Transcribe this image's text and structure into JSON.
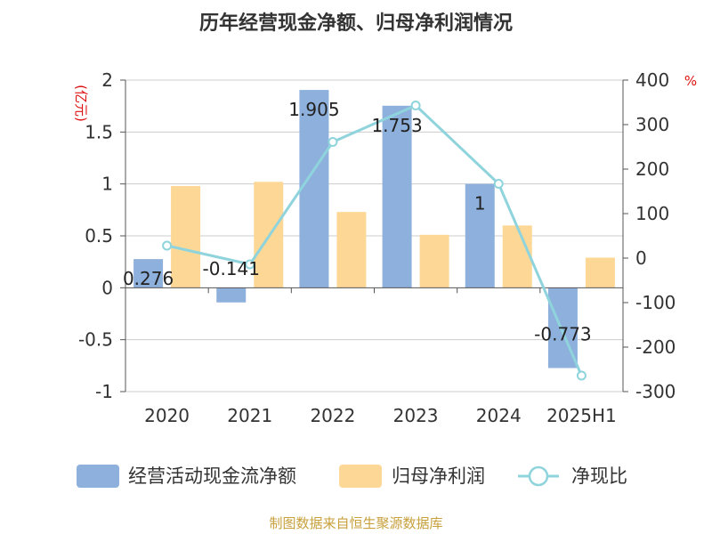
{
  "title": "历年经营现金净额、归母净利润情况",
  "source": "制图数据来自恒生聚源数据库",
  "chart_data": {
    "type": "bar",
    "categories": [
      "2020",
      "2021",
      "2022",
      "2023",
      "2024",
      "2025H1"
    ],
    "series": [
      {
        "name": "经营活动现金流净额",
        "type": "bar",
        "axis": "left",
        "color": "#8eb0dc",
        "values": [
          0.276,
          -0.141,
          1.905,
          1.753,
          1,
          -0.773
        ],
        "data_labels": [
          "0.276",
          "-0.141",
          "1.905",
          "1.753",
          "1",
          "-0.773"
        ]
      },
      {
        "name": "归母净利润",
        "type": "bar",
        "axis": "left",
        "color": "#fdd796",
        "values": [
          0.98,
          1.02,
          0.73,
          0.51,
          0.6,
          0.29
        ]
      },
      {
        "name": "净现比",
        "type": "line",
        "axis": "right",
        "color": "#8fd4dc",
        "values": [
          28,
          -14,
          261,
          343,
          167,
          -264
        ]
      }
    ],
    "y_left": {
      "unit": "(亿元)",
      "ylim": [
        -1,
        2
      ],
      "ticks": [
        2,
        1.5,
        1,
        0.5,
        0,
        -0.5,
        -1
      ],
      "tick_labels": [
        "2",
        "1.5",
        "1",
        "0.5",
        "0",
        "-0.5",
        "-1"
      ]
    },
    "y_right": {
      "unit": "%",
      "ylim": [
        -300,
        400
      ],
      "ticks": [
        400,
        300,
        200,
        100,
        0,
        -100,
        -200,
        -300
      ],
      "tick_labels": [
        "400",
        "300",
        "200",
        "100",
        "0",
        "-100",
        "-200",
        "-300"
      ]
    },
    "grid": true,
    "legend_position": "bottom"
  }
}
